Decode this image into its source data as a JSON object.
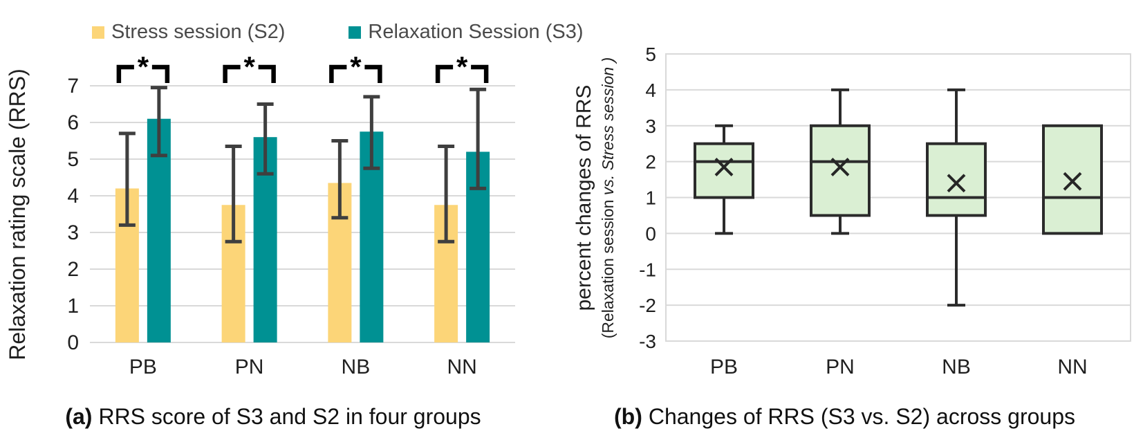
{
  "figure": {
    "background": "#FFFFFF",
    "text_color": "#1F1F1F",
    "gridline_color": "#D9D9D9"
  },
  "legend": {
    "items": [
      {
        "label": "Stress session (S2)",
        "color": "#FCD578",
        "icon": "square-swatch"
      },
      {
        "label": "Relaxation Session (S3)",
        "color": "#009193",
        "icon": "square-swatch"
      }
    ]
  },
  "chart_data": [
    {
      "id": "a",
      "type": "bar",
      "caption_prefix": "(a)",
      "caption": "RRS score of S3 and S2 in four groups",
      "ylabel": "Relaxation rating scale (RRS)",
      "categories": [
        "PB",
        "PN",
        "NB",
        "NN"
      ],
      "yticks": [
        0,
        1,
        2,
        3,
        4,
        5,
        6,
        7
      ],
      "ylim": [
        0,
        7.6
      ],
      "grid": true,
      "legend_position": "top",
      "error_bar_color": "#3F3F3F",
      "significance_color": "#000000",
      "series": [
        {
          "name": "Stress session (S2)",
          "color": "#FCD578",
          "values": [
            4.2,
            3.75,
            4.35,
            3.75
          ],
          "error_low": [
            3.2,
            2.75,
            3.4,
            2.75
          ],
          "error_high": [
            5.7,
            5.35,
            5.5,
            5.35
          ]
        },
        {
          "name": "Relaxation Session (S3)",
          "color": "#009193",
          "values": [
            6.1,
            5.6,
            5.75,
            5.2
          ],
          "error_low": [
            5.1,
            4.6,
            4.75,
            4.2
          ],
          "error_high": [
            6.95,
            6.5,
            6.7,
            6.9
          ]
        }
      ],
      "significance_markers": [
        {
          "group": "PB",
          "label": "*"
        },
        {
          "group": "PN",
          "label": "*"
        },
        {
          "group": "NB",
          "label": "*"
        },
        {
          "group": "NN",
          "label": "*"
        }
      ]
    },
    {
      "id": "b",
      "type": "boxplot",
      "caption_prefix": "(b)",
      "caption": "Changes of RRS (S3 vs. S2) across groups",
      "ylabel": "percent changes of RRS",
      "ylabel_sub": {
        "regular": "(Relaxation  session  ",
        "italic": "vs. Stress session )"
      },
      "categories": [
        "PB",
        "PN",
        "NB",
        "NN"
      ],
      "yticks": [
        5,
        4,
        3,
        2,
        1,
        0,
        -1,
        -2,
        -3
      ],
      "ylim": [
        -3,
        5
      ],
      "grid": true,
      "box_fill": "#DAEFD3",
      "box_stroke": "#2B2B2B",
      "mean_marker": "x",
      "boxes": [
        {
          "group": "PB",
          "whisker_low": 0,
          "q1": 1,
          "median": 2,
          "q3": 2.5,
          "whisker_high": 3,
          "mean": 1.85
        },
        {
          "group": "PN",
          "whisker_low": 0,
          "q1": 0.5,
          "median": 2,
          "q3": 3,
          "whisker_high": 4,
          "mean": 1.85
        },
        {
          "group": "NB",
          "whisker_low": -2,
          "q1": 0.5,
          "median": 1,
          "q3": 2.5,
          "whisker_high": 4,
          "mean": 1.4
        },
        {
          "group": "NN",
          "whisker_low": null,
          "q1": 0,
          "median": 1,
          "q3": 3,
          "whisker_high": null,
          "mean": 1.45
        }
      ]
    }
  ]
}
